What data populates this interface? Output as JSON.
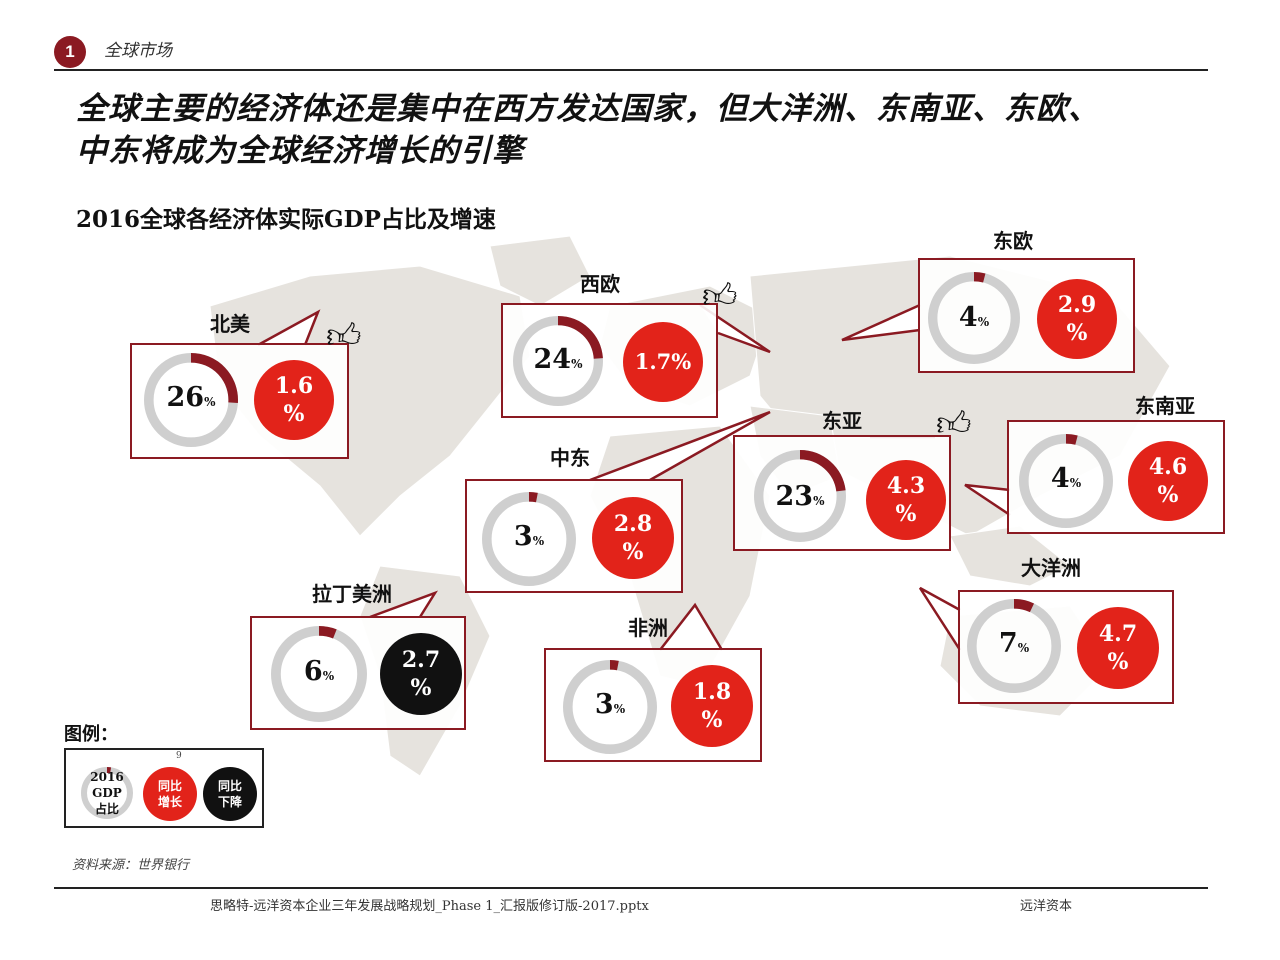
{
  "header": {
    "section_number": "1",
    "section_title": "全球市场",
    "headline_line1": "全球主要的经济体还是集中在西方发达国家，但大洋洲、东南亚、东欧、",
    "headline_line2": "中东将成为全球经济增长的引擎",
    "subtitle": "2016全球各经济体实际GDP占比及增速"
  },
  "regions": [
    {
      "key": "na",
      "name": "北美",
      "gdp_share": 26,
      "gdp_label": "26",
      "growth_line1": "1.6",
      "growth_line2": "%",
      "growth_type": "increase",
      "thumb": true
    },
    {
      "key": "we",
      "name": "西欧",
      "gdp_share": 24,
      "gdp_label": "24",
      "growth_line1": "1.7%",
      "growth_line2": "",
      "growth_type": "increase",
      "thumb": true
    },
    {
      "key": "ee",
      "name": "东欧",
      "gdp_share": 4,
      "gdp_label": "4",
      "growth_line1": "2.9",
      "growth_line2": "%",
      "growth_type": "increase",
      "thumb": false
    },
    {
      "key": "ea",
      "name": "东亚",
      "gdp_share": 23,
      "gdp_label": "23",
      "growth_line1": "4.3",
      "growth_line2": "%",
      "growth_type": "increase",
      "thumb": true
    },
    {
      "key": "sea",
      "name": "东南亚",
      "gdp_share": 4,
      "gdp_label": "4",
      "growth_line1": "4.6",
      "growth_line2": "%",
      "growth_type": "increase",
      "thumb": false
    },
    {
      "key": "me",
      "name": "中东",
      "gdp_share": 3,
      "gdp_label": "3",
      "growth_line1": "2.8",
      "growth_line2": "%",
      "growth_type": "increase",
      "thumb": false
    },
    {
      "key": "oc",
      "name": "大洋洲",
      "gdp_share": 7,
      "gdp_label": "7",
      "growth_line1": "4.7",
      "growth_line2": "%",
      "growth_type": "increase",
      "thumb": false
    },
    {
      "key": "la",
      "name": "拉丁美洲",
      "gdp_share": 6,
      "gdp_label": "6",
      "growth_line1": "2.7",
      "growth_line2": "%",
      "growth_type": "decrease",
      "thumb": false
    },
    {
      "key": "af",
      "name": "非洲",
      "gdp_share": 3,
      "gdp_label": "3",
      "growth_line1": "1.8",
      "growth_line2": "%",
      "growth_type": "increase",
      "thumb": false
    }
  ],
  "percent_sign": "%",
  "legend": {
    "title": "图例：",
    "number": "9",
    "gdp_line1": "2016",
    "gdp_line2": "GDP",
    "gdp_line3": "占比",
    "inc_line1": "同比",
    "inc_line2": "增长",
    "dec_line1": "同比",
    "dec_line2": "下降"
  },
  "source": "资料来源：世界银行",
  "footer": {
    "file": "思略特-远洋资本企业三年发展战略规划_Phase 1_汇报版修订版-2017.pptx",
    "company": "远洋资本"
  },
  "colors": {
    "accent": "#8b1a22",
    "increase": "#e2231a",
    "decrease": "#111111",
    "ring": "#cfcfcf",
    "map": "#e6e3de"
  }
}
